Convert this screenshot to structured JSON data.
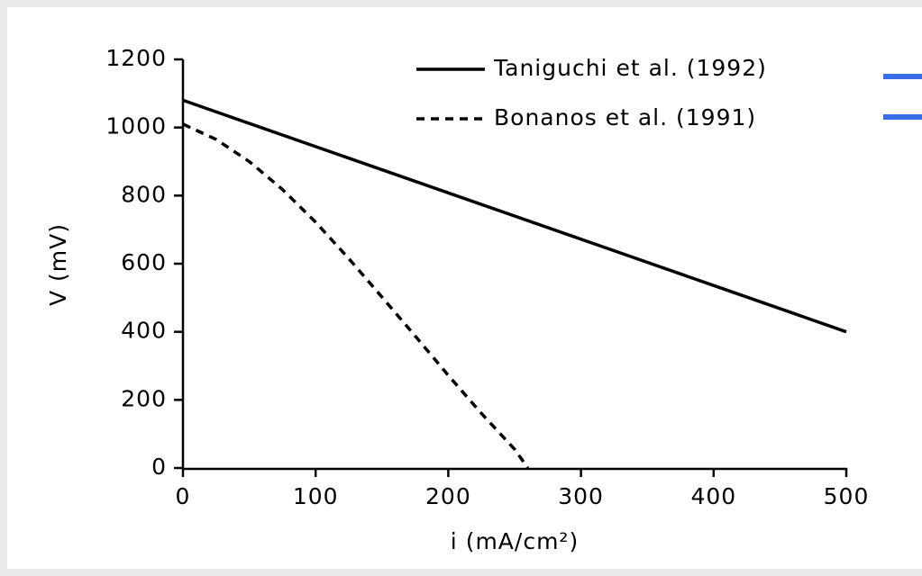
{
  "chart_data": {
    "type": "line",
    "xlabel": "i (mA/cm²)",
    "ylabel": "V (mV)",
    "xlim": [
      0,
      500
    ],
    "xticks": [
      0,
      100,
      200,
      300,
      400,
      500
    ],
    "ylim": [
      0,
      1200
    ],
    "yticks": [
      0,
      200,
      400,
      600,
      800,
      1000,
      1200
    ],
    "legend": "top-right",
    "series": [
      {
        "name": "Taniguchi et al. (1992)",
        "color": "#000000",
        "dash": "solid",
        "x": [
          0,
          100,
          200,
          300,
          400,
          500
        ],
        "values": [
          1080,
          944,
          808,
          672,
          536,
          400
        ]
      },
      {
        "name": "Bonanos et al. (1991)",
        "color": "#000000",
        "dash": "dashed",
        "x": [
          0,
          25,
          50,
          75,
          100,
          125,
          150,
          175,
          200,
          225,
          250,
          260
        ],
        "values": [
          1010,
          965,
          900,
          818,
          722,
          615,
          502,
          388,
          272,
          160,
          55,
          0
        ]
      }
    ]
  }
}
